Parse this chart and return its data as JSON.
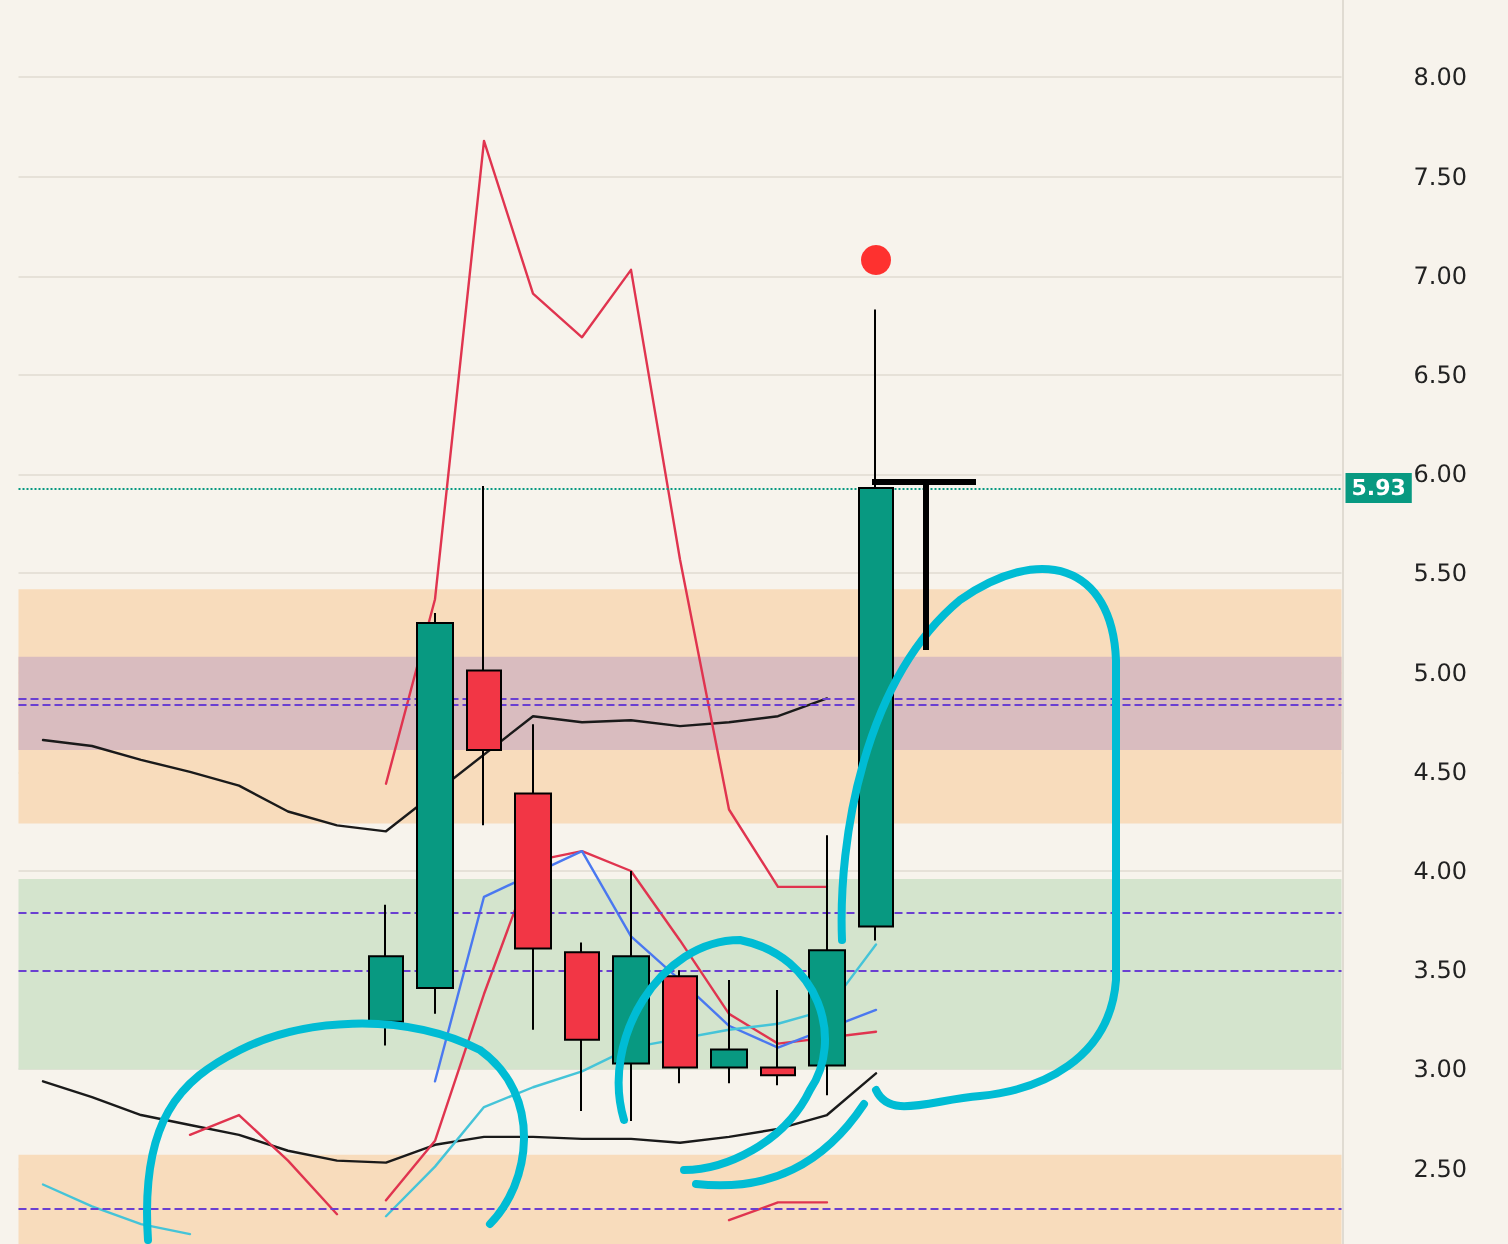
{
  "chart_data": {
    "type": "candlestick",
    "categories": [
      null,
      null,
      null,
      null,
      null,
      null,
      null,
      null,
      null,
      null,
      null,
      null,
      null,
      null,
      null,
      null,
      null,
      null,
      null,
      null,
      null,
      null,
      null,
      null,
      null,
      null,
      null
    ],
    "ohlc": [
      null,
      null,
      null,
      null,
      null,
      null,
      null,
      [
        3.24,
        3.83,
        3.12,
        3.57
      ],
      [
        3.41,
        5.3,
        3.28,
        5.25
      ],
      [
        5.01,
        5.94,
        4.23,
        4.61
      ],
      [
        4.39,
        4.74,
        3.2,
        3.61
      ],
      [
        3.59,
        3.64,
        2.79,
        3.15
      ],
      [
        3.03,
        4.0,
        2.74,
        3.57
      ],
      [
        3.47,
        3.5,
        2.93,
        3.01
      ],
      [
        3.01,
        3.45,
        2.93,
        3.1
      ],
      [
        3.01,
        3.4,
        2.92,
        2.97
      ],
      [
        3.02,
        4.18,
        2.87,
        3.6
      ],
      [
        3.72,
        6.83,
        3.65,
        5.93
      ],
      null,
      null,
      null,
      null,
      null,
      null,
      null,
      null,
      null
    ],
    "colors": [
      null,
      null,
      null,
      null,
      null,
      null,
      null,
      "#089981",
      "#089981",
      "#f23645",
      "#f23645",
      "#f23645",
      "#089981",
      "#f23645",
      "#089981",
      "#f23645",
      "#089981",
      "#089981",
      null,
      null,
      null,
      null,
      null,
      null,
      null,
      null,
      null
    ],
    "series": [
      {
        "type": "line",
        "color": "#1a1a1a",
        "values": [
          4.66,
          4.63,
          4.56,
          4.5,
          4.43,
          4.3,
          4.23,
          4.2,
          null,
          null,
          4.78,
          4.75,
          4.76,
          4.73,
          4.75,
          4.78,
          4.87,
          null,
          null,
          null,
          null,
          null,
          null,
          null,
          null,
          null,
          null
        ]
      },
      {
        "type": "line",
        "color": "#1a1a1a",
        "values": [
          2.94,
          2.86,
          2.77,
          2.72,
          2.67,
          2.59,
          2.54,
          2.53,
          2.62,
          2.66,
          2.66,
          2.65,
          2.65,
          2.63,
          2.66,
          2.7,
          2.77,
          2.98,
          null,
          null,
          null,
          null,
          null,
          null,
          null,
          null,
          null
        ]
      },
      {
        "type": "line",
        "color": "#e0344f",
        "values": [
          null,
          null,
          null,
          null,
          null,
          null,
          null,
          4.44,
          5.37,
          7.68,
          6.91,
          6.69,
          7.03,
          5.57,
          4.31,
          3.92,
          3.92,
          null,
          null,
          null,
          null,
          null,
          null,
          null,
          null,
          null,
          null
        ]
      },
      {
        "type": "line",
        "color": "#e0344f",
        "values": [
          null,
          null,
          null,
          null,
          null,
          null,
          null,
          2.34,
          2.64,
          3.38,
          4.05,
          4.1,
          4.0,
          3.65,
          3.28,
          3.13,
          null,
          3.19,
          null,
          null,
          null,
          null,
          null,
          null,
          null,
          null,
          null
        ]
      },
      {
        "type": "line",
        "color": "#e0344f",
        "values": [
          null,
          null,
          null,
          2.67,
          2.77,
          2.54,
          2.27,
          null,
          null,
          null,
          null,
          null,
          null,
          null,
          null,
          null,
          null,
          null,
          null,
          null,
          null,
          null,
          null,
          null,
          null,
          null,
          null
        ]
      },
      {
        "type": "line",
        "color": "#e0344f",
        "values": [
          null,
          null,
          null,
          null,
          null,
          null,
          null,
          null,
          null,
          null,
          null,
          null,
          null,
          null,
          2.24,
          2.33,
          2.33,
          null,
          null,
          null,
          null,
          null,
          null,
          null,
          null,
          null,
          null
        ]
      },
      {
        "type": "line",
        "color": "#4a78f0",
        "values": [
          null,
          null,
          null,
          null,
          null,
          null,
          null,
          null,
          2.94,
          3.87,
          null,
          4.1,
          3.67,
          3.45,
          3.22,
          3.11,
          null,
          3.3,
          null,
          null,
          null,
          null,
          null,
          null,
          null,
          null,
          null
        ]
      },
      {
        "type": "line",
        "color": "#45c4d8",
        "values": [
          2.42,
          2.31,
          2.22,
          2.17,
          null,
          null,
          null,
          null,
          null,
          null,
          null,
          null,
          null,
          null,
          null,
          null,
          null,
          null,
          null,
          null,
          null,
          null,
          null,
          null,
          null,
          null,
          null
        ]
      },
      {
        "type": "line",
        "color": "#45c4d8",
        "values": [
          null,
          null,
          null,
          null,
          null,
          null,
          null,
          2.26,
          2.51,
          2.81,
          2.91,
          2.99,
          3.11,
          null,
          3.2,
          3.23,
          3.3,
          3.63,
          null,
          null,
          null,
          null,
          null,
          null,
          null,
          null,
          null
        ]
      },
      {
        "type": "scatter",
        "color": "#ff0000",
        "marker": "circle",
        "values": [
          null,
          null,
          null,
          null,
          null,
          null,
          null,
          null,
          null,
          null,
          null,
          null,
          null,
          null,
          null,
          null,
          null,
          7.08,
          null,
          null,
          null,
          null,
          null,
          null,
          null,
          null,
          null
        ]
      }
    ],
    "ylim": [
      2.12,
      8.39
    ],
    "yticks": [
      {
        "value": 2.5,
        "label": "2.50"
      },
      {
        "value": 3,
        "label": "3.00"
      },
      {
        "value": 3.5,
        "label": "3.50"
      },
      {
        "value": 4,
        "label": "4.00"
      },
      {
        "value": 4.5,
        "label": "4.50"
      },
      {
        "value": 5,
        "label": "5.00"
      },
      {
        "value": 5.5,
        "label": "5.50"
      },
      {
        "value": 6,
        "label": "6.00"
      },
      {
        "value": 6.5,
        "label": "6.50"
      },
      {
        "value": 7,
        "label": "7.00"
      },
      {
        "value": 7.5,
        "label": "7.50"
      },
      {
        "value": 8,
        "label": "8.00"
      }
    ],
    "bands": [
      {
        "axis": "y",
        "from": 4.24,
        "to": 5.42,
        "color": "#f8dcbc"
      },
      {
        "axis": "y",
        "from": 4.61,
        "to": 5.08,
        "color": "#d9bcbf"
      },
      {
        "axis": "y",
        "from": 3.0,
        "to": 3.96,
        "color": "#d4e4cd"
      },
      {
        "axis": "y",
        "from": 2.12,
        "to": 2.57,
        "color": "#f8dcbc"
      }
    ],
    "ref_lines": [
      {
        "axis": "y",
        "value": 5.93,
        "label": "5.93",
        "color": "#089981",
        "line_style": "dotted"
      },
      {
        "axis": "y",
        "value": 4.87,
        "color": "#6a3fd1",
        "line_style": "dashed"
      },
      {
        "axis": "y",
        "value": 4.84,
        "color": "#6a3fd1",
        "line_style": "dashed"
      },
      {
        "axis": "y",
        "value": 3.79,
        "color": "#6a3fd1",
        "line_style": "dashed"
      },
      {
        "axis": "y",
        "value": 3.5,
        "color": "#6a3fd1",
        "line_style": "dashed"
      },
      {
        "axis": "y",
        "value": 2.3,
        "color": "#6a3fd1",
        "line_style": "dashed"
      }
    ],
    "grid": "y",
    "tick_labels": "y",
    "marker": "none",
    "line_style": "solid"
  }
}
